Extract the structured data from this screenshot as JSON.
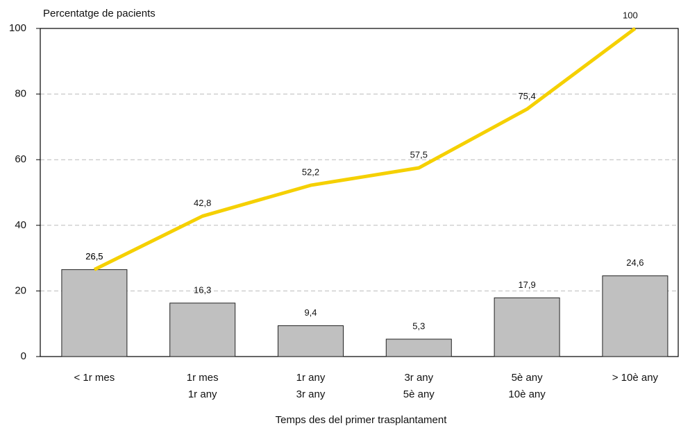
{
  "chart_data": {
    "type": "combo",
    "y_label": "Percentatge de pacients",
    "x_label": "Temps des del primer trasplantament",
    "categories": [
      [
        "< 1r mes"
      ],
      [
        "1r mes",
        "1r any"
      ],
      [
        "1r any",
        "3r any"
      ],
      [
        "3r any",
        "5è any"
      ],
      [
        "5è any",
        "10è any"
      ],
      [
        "> 10è any"
      ]
    ],
    "series": [
      {
        "type": "bar",
        "color": "#c0c0c0",
        "values": [
          26.5,
          16.3,
          9.4,
          5.3,
          17.9,
          24.6
        ],
        "value_labels": [
          "26,5",
          "16,3",
          "9,4",
          "5,3",
          "17,9",
          "24,6"
        ]
      },
      {
        "type": "line",
        "color": "#f5d000",
        "values": [
          26.5,
          42.8,
          52.2,
          57.5,
          75.4,
          100
        ],
        "value_labels": [
          "26,5",
          "42,8",
          "52,2",
          "57,5",
          "75,4",
          "100"
        ]
      }
    ],
    "ylim": [
      0,
      100
    ],
    "yticks": [
      0,
      20,
      40,
      60,
      80,
      100
    ],
    "grid": true
  }
}
